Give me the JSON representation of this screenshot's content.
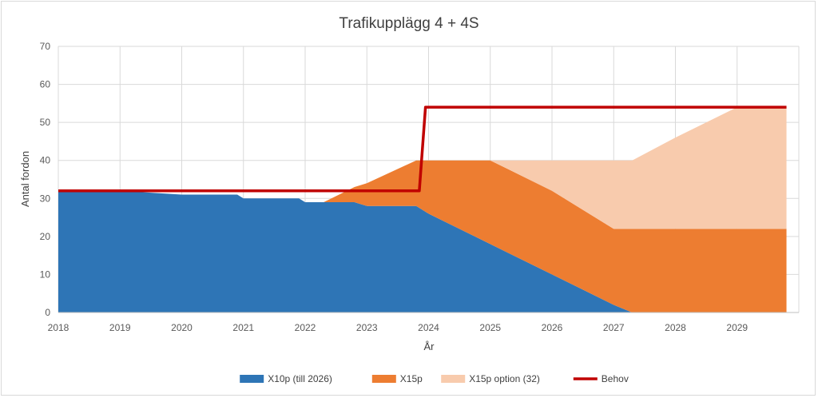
{
  "chart_data": {
    "type": "area",
    "title": "Trafikupplägg 4 + 4S",
    "xlabel": "År",
    "ylabel": "Antal fordon",
    "ylim": [
      0,
      70
    ],
    "yticks": [
      0,
      10,
      20,
      30,
      40,
      50,
      60,
      70
    ],
    "xlim": [
      2018,
      2030
    ],
    "xticks": [
      2018,
      2019,
      2020,
      2021,
      2022,
      2023,
      2024,
      2025,
      2026,
      2027,
      2028,
      2029
    ],
    "grid": true,
    "legend_position": "bottom",
    "x": [
      2018,
      2019,
      2020,
      2020.9,
      2021,
      2021.9,
      2022,
      2022.3,
      2022.8,
      2023,
      2023.8,
      2024,
      2025,
      2026,
      2027,
      2027.3,
      2028,
      2029,
      2029.8
    ],
    "series": [
      {
        "name": "X10p (till 2026)",
        "kind": "stacked-area",
        "color": "#2e75b6",
        "values": [
          32,
          32,
          31,
          31,
          30,
          30,
          29,
          29,
          29,
          28,
          28,
          26,
          18,
          10,
          2,
          0,
          0,
          0,
          0
        ]
      },
      {
        "name": "X15p",
        "kind": "stacked-area",
        "color": "#ed7d31",
        "values": [
          0,
          0,
          0,
          0,
          0,
          0,
          0,
          0,
          4,
          6,
          12,
          14,
          22,
          22,
          20,
          22,
          22,
          22,
          22
        ]
      },
      {
        "name": "X15p option (32)",
        "kind": "stacked-area",
        "color": "#f8cbad",
        "values": [
          0,
          0,
          0,
          0,
          0,
          0,
          0,
          0,
          0,
          0,
          0,
          0,
          0,
          8,
          18,
          18,
          24,
          32,
          32
        ]
      },
      {
        "name": "Behov",
        "kind": "line",
        "color": "#c00000",
        "x": [
          2018,
          2023.85,
          2023.95,
          2029.8
        ],
        "values": [
          32,
          32,
          54,
          54
        ]
      }
    ]
  }
}
